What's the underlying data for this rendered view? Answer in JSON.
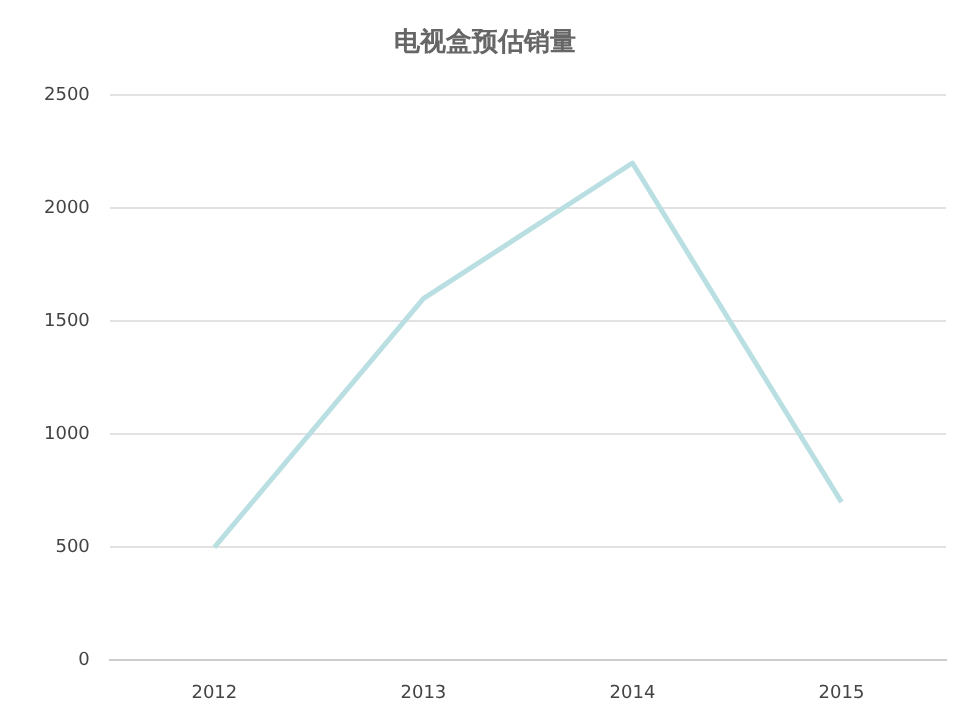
{
  "chart_data": {
    "type": "line",
    "title": "电视盒预估销量",
    "categories": [
      "2012",
      "2013",
      "2014",
      "2015"
    ],
    "series": [
      {
        "color": "#b9dfe2",
        "values": [
          500,
          1600,
          2200,
          700
        ]
      }
    ],
    "ylim": [
      0,
      2500
    ],
    "yticks": [
      0,
      500,
      1000,
      1500,
      2000,
      2500
    ],
    "grid": "y",
    "legend": false,
    "marker": "none"
  }
}
